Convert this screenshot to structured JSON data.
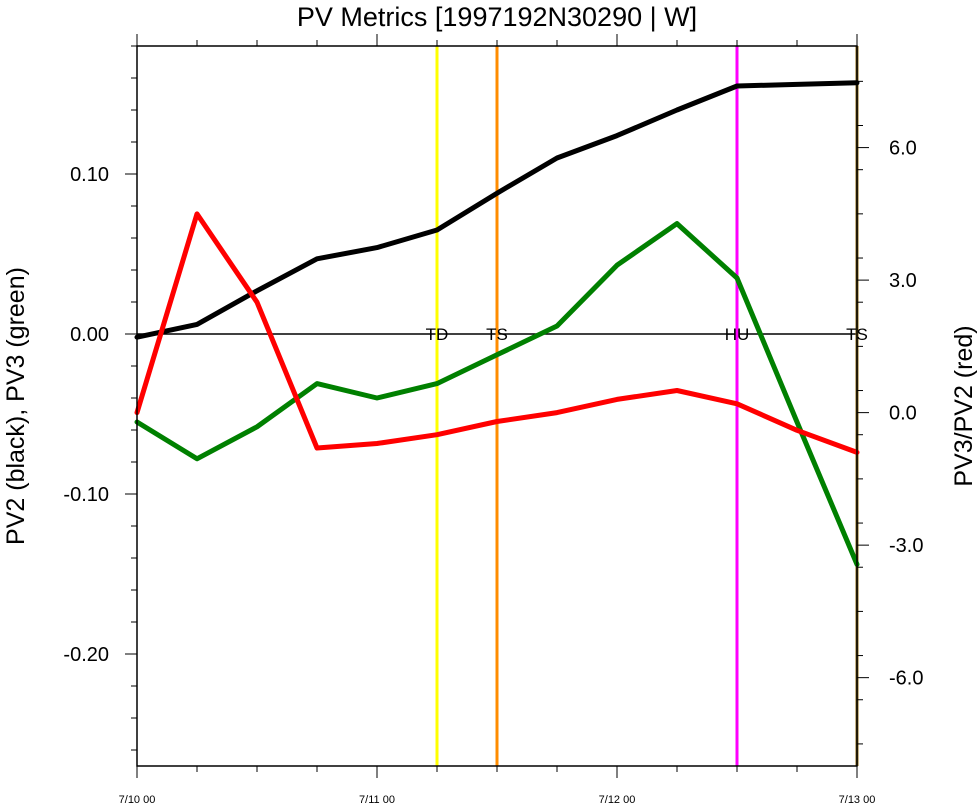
{
  "chart_data": {
    "type": "line",
    "title": "PV Metrics [1997192N30290 | W]",
    "ylabel_left": "PV2 (black), PV3 (green)",
    "ylabel_right": "PV3/PV2 (red)",
    "x": [
      "7/10 00",
      "7/10 06",
      "7/10 12",
      "7/10 18",
      "7/11 00",
      "7/11 06",
      "7/11 12",
      "7/11 18",
      "7/12 00",
      "7/12 06",
      "7/12 12",
      "7/12 18",
      "7/13 00"
    ],
    "x_hours": [
      0,
      6,
      12,
      18,
      24,
      30,
      36,
      42,
      48,
      54,
      60,
      66,
      72
    ],
    "xlim": [
      "7/10 00",
      "7/13 00"
    ],
    "x_ticks": [
      "7/10 00",
      "7/11 00",
      "7/12 00",
      "7/13 00"
    ],
    "ylim_left": [
      -0.27,
      0.18
    ],
    "ylim_right": [
      -8.0,
      8.3
    ],
    "yticks_left": [
      {
        "value": 0.1,
        "label": "0.10"
      },
      {
        "value": 0.0,
        "label": "0.00"
      },
      {
        "value": -0.1,
        "label": "-0.10"
      },
      {
        "value": -0.2,
        "label": "-0.20"
      }
    ],
    "yticks_right": [
      {
        "value": 6.0,
        "label": "6.0"
      },
      {
        "value": 3.0,
        "label": "3.0"
      },
      {
        "value": 0.0,
        "label": "0.0"
      },
      {
        "value": -3.0,
        "label": "-3.0"
      },
      {
        "value": -6.0,
        "label": "-6.0"
      }
    ],
    "series": [
      {
        "axis": "left",
        "color": "#000000",
        "values": [
          -0.002,
          0.006,
          0.027,
          0.047,
          0.054,
          0.065,
          0.088,
          0.11,
          0.124,
          0.14,
          0.155,
          0.156,
          0.157
        ]
      },
      {
        "axis": "left",
        "color": "#008000",
        "values": [
          -0.055,
          -0.078,
          -0.058,
          -0.031,
          -0.04,
          -0.031,
          -0.013,
          0.005,
          0.043,
          0.069,
          0.035,
          -0.055,
          -0.144
        ]
      },
      {
        "axis": "right",
        "color": "#ff0000",
        "values": [
          0.0,
          4.5,
          2.5,
          -0.8,
          -0.7,
          -0.5,
          -0.2,
          0.0,
          0.3,
          0.5,
          0.2,
          -0.4,
          -0.9
        ]
      }
    ],
    "events": [
      {
        "label": "TD",
        "x_hours": 30,
        "color": "#ffff00"
      },
      {
        "label": "TS",
        "x_hours": 36,
        "color": "#ff8c00"
      },
      {
        "label": "HU",
        "x_hours": 60,
        "color": "#ff00ff"
      },
      {
        "label": "TS",
        "x_hours": 72,
        "color": "#8b6914"
      }
    ]
  }
}
